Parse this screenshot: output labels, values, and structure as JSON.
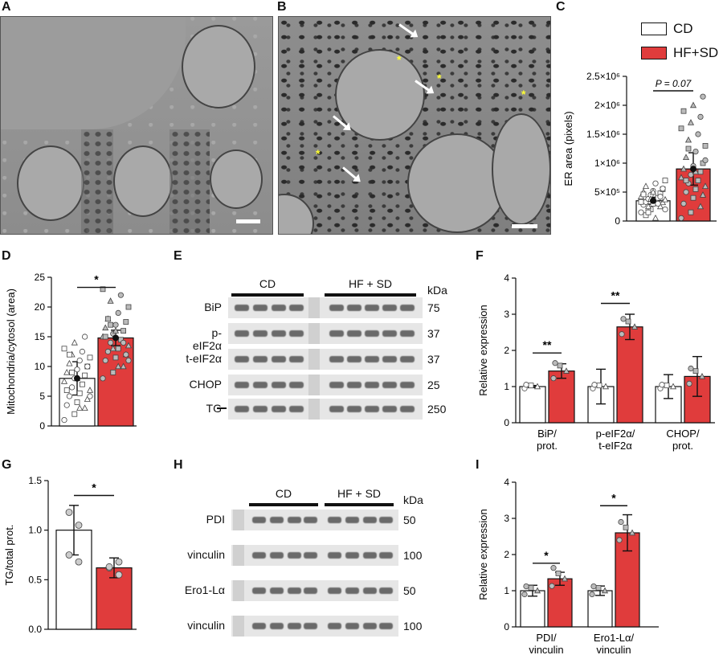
{
  "panels": {
    "A": "A",
    "B": "B",
    "C": "C",
    "D": "D",
    "E": "E",
    "F": "F",
    "G": "G",
    "H": "H",
    "I": "I"
  },
  "legend": {
    "cd": "CD",
    "hfsd": "HF+SD",
    "cd_color": "#ffffff",
    "hfsd_color": "#e03c3c"
  },
  "blot_E": {
    "group1": "CD",
    "group2": "HF + SD",
    "kda_header": "kDa",
    "rows": [
      {
        "label": "BiP",
        "kda": "75"
      },
      {
        "label": "p-eIF2α",
        "kda": "37"
      },
      {
        "label": "t-eIF2α",
        "kda": "37"
      },
      {
        "label": "CHOP",
        "kda": "25"
      },
      {
        "label": "TG",
        "kda": "250"
      }
    ]
  },
  "blot_H": {
    "group1": "CD",
    "group2": "HF + SD",
    "kda_header": "kDa",
    "rows": [
      {
        "label": "PDI",
        "kda": "50"
      },
      {
        "label": "vinculin",
        "kda": "100"
      },
      {
        "label": "Ero1-Lα",
        "kda": "50"
      },
      {
        "label": "vinculin",
        "kda": "100"
      }
    ]
  },
  "chart_data": [
    {
      "panel": "C",
      "type": "bar",
      "ylabel": "ER area (pixels)",
      "yticks": [
        "0",
        "5×10⁵",
        "1×10⁶",
        "1.5×10⁶",
        "2×10⁶",
        "2.5×10⁶"
      ],
      "ylim": [
        0,
        2500000
      ],
      "categories": [
        "CD",
        "HF+SD"
      ],
      "values": [
        350000,
        900000
      ],
      "errors": [
        60000,
        280000
      ],
      "annotation": "P = 0.07",
      "points": [
        [
          150000,
          200000,
          250000,
          280000,
          300000,
          320000,
          330000,
          350000,
          370000,
          380000,
          400000,
          420000,
          450000,
          480000,
          500000,
          520000,
          550000,
          600000,
          650000,
          700000,
          250000,
          300000,
          330000,
          380000,
          420000,
          460000,
          500000,
          560000,
          100000,
          50000,
          200000,
          150000
        ],
        [
          50000,
          150000,
          250000,
          300000,
          400000,
          450000,
          500000,
          550000,
          600000,
          650000,
          700000,
          750000,
          800000,
          850000,
          900000,
          950000,
          1000000,
          1100000,
          1200000,
          1300000,
          1400000,
          1500000,
          1600000,
          1700000,
          1800000,
          1900000,
          2000000,
          2150000,
          700000,
          850000,
          1050000,
          1250000
        ]
      ]
    },
    {
      "panel": "D",
      "type": "bar",
      "ylabel": "Mitochondria/cytosol (area)",
      "yticks": [
        "0",
        "5",
        "10",
        "15",
        "20",
        "25"
      ],
      "ylim": [
        0,
        25
      ],
      "categories": [
        "CD",
        "HF+SD"
      ],
      "values": [
        8,
        14.8
      ],
      "errors": [
        2.8,
        1.3
      ],
      "annotation": "*",
      "points": [
        [
          1,
          2,
          3,
          3.5,
          4,
          4.5,
          5,
          5.5,
          6,
          6.5,
          7,
          7.5,
          8,
          8.5,
          9,
          9.5,
          10,
          10.5,
          11,
          11.5,
          12,
          12.5,
          13,
          14,
          15,
          6,
          8,
          10,
          12,
          3,
          5,
          9
        ],
        [
          8,
          9,
          10,
          11,
          11.5,
          12,
          12.5,
          13,
          13.5,
          14,
          14.5,
          15,
          15.5,
          16,
          16.5,
          17,
          17.5,
          18,
          19,
          20,
          21,
          22,
          23,
          13,
          14,
          15,
          16,
          12,
          18,
          10,
          11,
          17
        ]
      ]
    },
    {
      "panel": "F",
      "type": "bar",
      "ylabel": "Relative expression",
      "yticks": [
        "0",
        "1",
        "2",
        "3",
        "4"
      ],
      "ylim": [
        0,
        4
      ],
      "categories": [
        "BiP/ prot.",
        "p-eIF2α/ t-eIF2α",
        "CHOP/ prot."
      ],
      "series": [
        {
          "name": "CD",
          "values": [
            1.0,
            1.0,
            1.0
          ],
          "errors": [
            0.03,
            0.48,
            0.33
          ]
        },
        {
          "name": "HF+SD",
          "values": [
            1.43,
            2.65,
            1.28
          ],
          "errors": [
            0.2,
            0.35,
            0.55
          ]
        }
      ],
      "annotations": [
        "**",
        "**",
        ""
      ]
    },
    {
      "panel": "G",
      "type": "bar",
      "ylabel": "TG/total prot.",
      "yticks": [
        "0.0",
        "0.5",
        "1.0",
        "1.5"
      ],
      "ylim": [
        0,
        1.5
      ],
      "categories": [
        "CD",
        "HF+SD"
      ],
      "values": [
        1.0,
        0.62
      ],
      "errors": [
        0.25,
        0.1
      ],
      "annotation": "*",
      "points": [
        [
          1.18,
          1.05,
          0.75,
          0.68
        ],
        [
          0.62,
          0.55,
          0.63,
          0.68
        ]
      ]
    },
    {
      "panel": "I",
      "type": "bar",
      "ylabel": "Relative expression",
      "yticks": [
        "0",
        "1",
        "2",
        "3",
        "4"
      ],
      "ylim": [
        0,
        4
      ],
      "categories": [
        "PDI/ vinculin",
        "Ero1-Lα/ vinculin"
      ],
      "series": [
        {
          "name": "CD",
          "values": [
            1.0,
            1.0
          ],
          "errors": [
            0.15,
            0.13
          ]
        },
        {
          "name": "HF+SD",
          "values": [
            1.33,
            2.6
          ],
          "errors": [
            0.18,
            0.5
          ]
        }
      ],
      "annotations": [
        "*",
        "*"
      ]
    }
  ]
}
